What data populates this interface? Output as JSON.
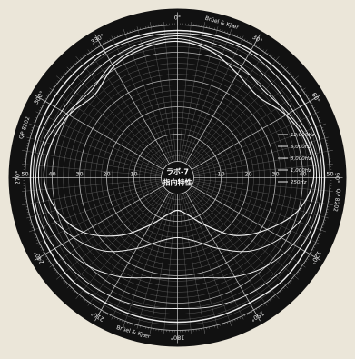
{
  "chart_data": {
    "type": "polar-line",
    "title": "ラボ-7 指向特性",
    "title_line1": "ラボ-7",
    "title_line2": "指向特性",
    "brand": "Brüel & Kjær",
    "side_label": "QP 8202",
    "angle_labels": [
      "0°",
      "30°",
      "60°",
      "90°",
      "120°",
      "150°",
      "180°",
      "210°",
      "240°",
      "270°",
      "300°",
      "330°"
    ],
    "radial_labels": [
      "50",
      "40",
      "30",
      "20",
      "10"
    ],
    "radial_unit": "dB",
    "series": [
      {
        "name": "12,000Hz",
        "unit": "dB"
      },
      {
        "name": "6,000Hz",
        "unit": "dB"
      },
      {
        "name": "3,000Hz",
        "unit": "dB"
      },
      {
        "name": "1,000Hz",
        "unit": "dB"
      },
      {
        "name": "250Hz",
        "unit": "dB"
      }
    ],
    "angle_step_deg": 30,
    "trace_angles_deg": [
      0,
      15,
      30,
      45,
      60,
      75,
      90,
      105,
      120,
      135,
      150,
      165,
      180,
      195,
      210,
      225,
      240,
      255,
      270,
      285,
      300,
      315,
      330,
      345
    ],
    "trace_levels_db": [
      [
        44,
        42,
        38,
        36,
        40,
        43,
        44,
        40,
        32,
        24,
        14,
        8,
        6,
        8,
        14,
        24,
        34,
        40,
        43,
        42,
        40,
        37,
        41,
        43
      ],
      [
        45,
        43,
        41,
        39,
        41,
        44,
        45,
        43,
        38,
        32,
        24,
        18,
        16,
        18,
        24,
        32,
        38,
        43,
        45,
        44,
        41,
        39,
        42,
        44
      ],
      [
        46,
        45,
        44,
        43,
        43,
        45,
        46,
        45,
        43,
        40,
        36,
        32,
        31,
        32,
        36,
        40,
        43,
        45,
        46,
        45,
        43,
        43,
        44,
        45
      ],
      [
        47,
        47,
        47,
        46,
        46,
        47,
        47,
        47,
        46,
        45,
        44,
        43,
        42,
        43,
        44,
        45,
        46,
        47,
        47,
        47,
        46,
        46,
        47,
        47
      ],
      [
        48,
        48,
        48,
        48,
        48,
        48,
        48,
        48,
        48,
        48,
        47,
        47,
        47,
        47,
        47,
        48,
        48,
        48,
        48,
        48,
        48,
        48,
        48,
        48
      ]
    ],
    "trace_color": "#ffffff",
    "chart_background": "#111111",
    "grid_color": "#cfcfcf",
    "grid": true,
    "rlim": [
      0,
      50
    ]
  }
}
